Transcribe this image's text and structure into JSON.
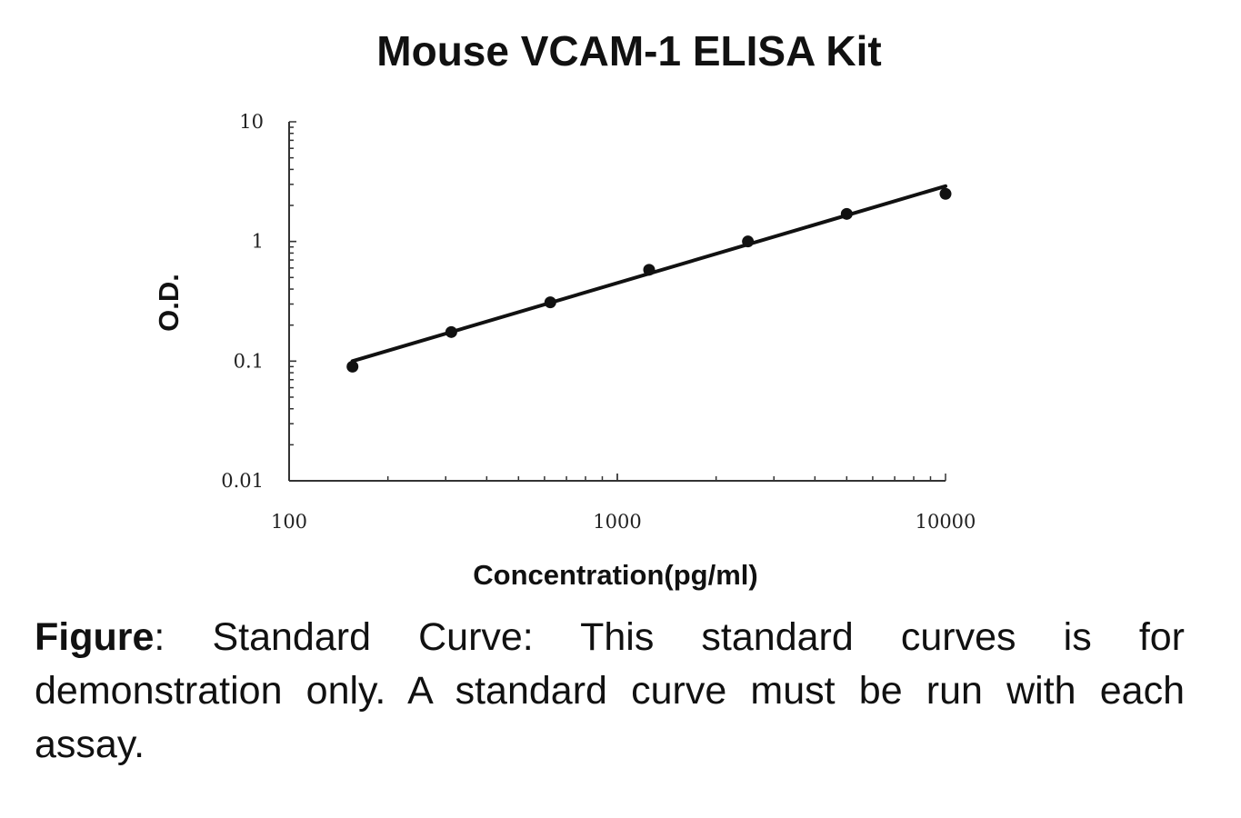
{
  "chart_data": {
    "type": "scatter",
    "title": "Mouse VCAM-1 ELISA Kit",
    "xlabel": "Concentration(pg/ml)",
    "ylabel": "O.D.",
    "x_scale": "log",
    "y_scale": "log",
    "xlim": [
      100,
      10000
    ],
    "ylim": [
      0.01,
      10
    ],
    "x_ticks": [
      "100",
      "1000",
      "10000"
    ],
    "y_ticks": [
      "10",
      "1",
      "0.1",
      "0.01"
    ],
    "grid": false,
    "series": [
      {
        "points": [
          {
            "x": 156,
            "y": 0.09
          },
          {
            "x": 312,
            "y": 0.175
          },
          {
            "x": 625,
            "y": 0.31
          },
          {
            "x": 1250,
            "y": 0.58
          },
          {
            "x": 2500,
            "y": 1.0
          },
          {
            "x": 5000,
            "y": 1.7
          },
          {
            "x": 10000,
            "y": 2.5
          }
        ]
      }
    ],
    "fit_line": {
      "x": [
        156,
        10000
      ],
      "y": [
        0.1,
        2.9
      ]
    }
  },
  "caption": {
    "label": "Figure",
    "text": ":  Standard  Curve:  This  standard  curves  is  for demonstration only. A standard curve must be run with each assay."
  }
}
